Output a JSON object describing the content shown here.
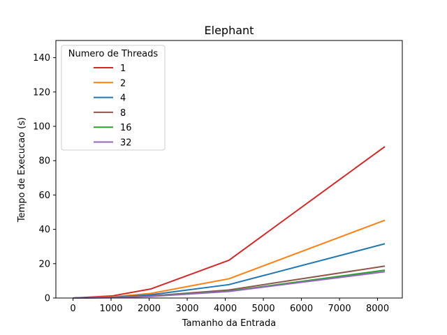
{
  "chart_data": {
    "type": "line",
    "title": "Elephant",
    "xlabel": "Tamanho da Entrada",
    "ylabel": "Tempo de Execucao (s)",
    "xlim": [
      -450,
      8650
    ],
    "ylim": [
      0,
      150
    ],
    "xticks": [
      0,
      1000,
      2000,
      3000,
      4000,
      5000,
      6000,
      7000,
      8000
    ],
    "yticks": [
      0,
      20,
      40,
      60,
      80,
      100,
      120,
      140
    ],
    "x": [
      0,
      1024,
      2048,
      4096,
      8192
    ],
    "legend": {
      "title": "Numero de Threads",
      "placement": "upper-left"
    },
    "grid": false,
    "series": [
      {
        "name": "1",
        "color": "#d62728",
        "values": [
          0,
          1.2,
          5.3,
          22.0,
          88.2
        ]
      },
      {
        "name": "2",
        "color": "#ff7f0e",
        "values": [
          0,
          0.6,
          2.7,
          11.2,
          45.3
        ]
      },
      {
        "name": "4",
        "color": "#1f77b4",
        "values": [
          0,
          0.4,
          1.9,
          7.8,
          31.6
        ]
      },
      {
        "name": "8",
        "color": "#8c564b",
        "values": [
          0,
          0.3,
          1.2,
          4.7,
          18.6
        ]
      },
      {
        "name": "16",
        "color": "#2ca02c",
        "values": [
          0,
          0.2,
          1.0,
          4.0,
          16.2
        ]
      },
      {
        "name": "32",
        "color": "#9467bd",
        "values": [
          0,
          0.2,
          0.9,
          3.8,
          15.3
        ]
      }
    ]
  }
}
